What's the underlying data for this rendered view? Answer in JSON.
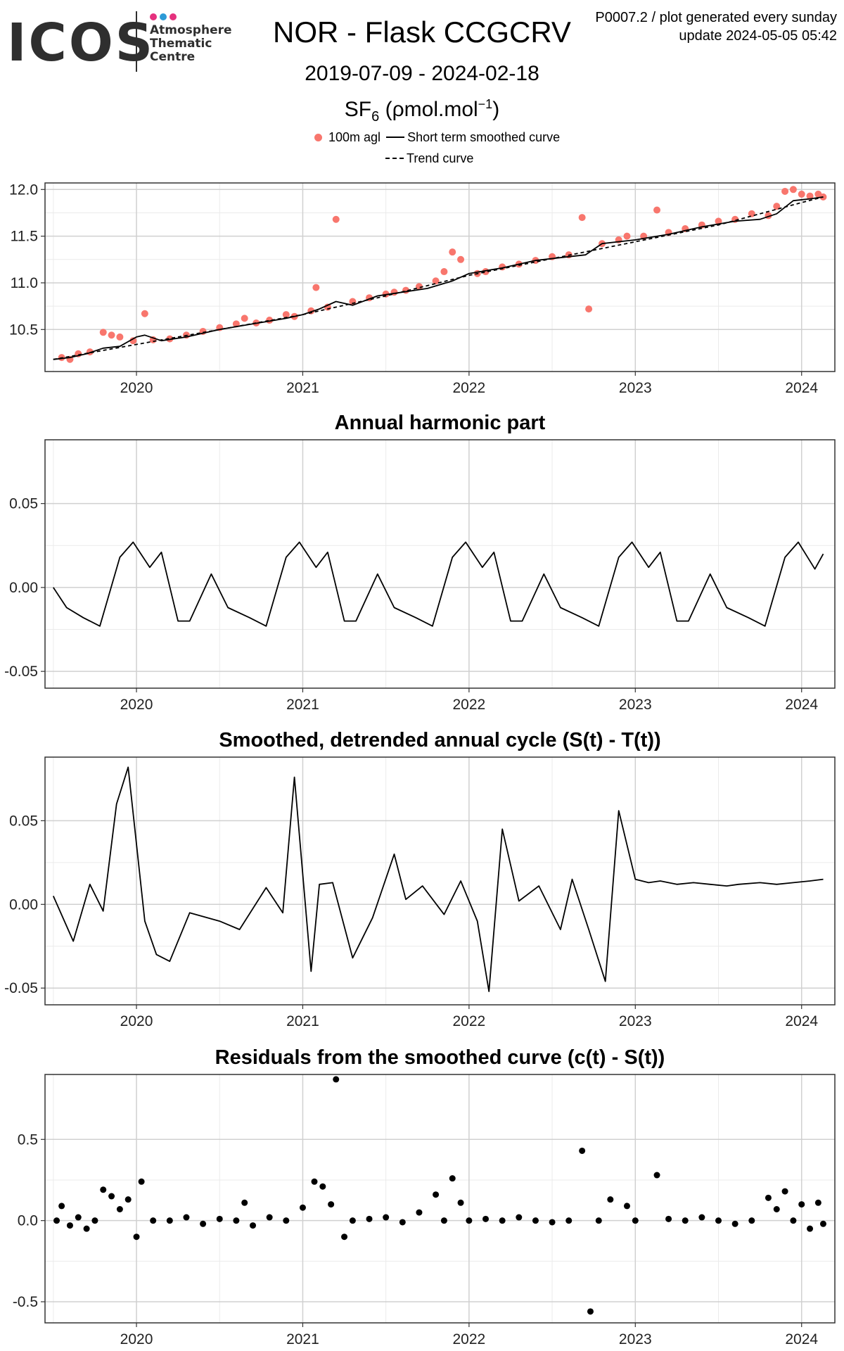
{
  "logo": {
    "text": "ICOS",
    "line1": "Atmosphere",
    "line2": "Thematic",
    "line3": "Centre",
    "dot_colors": [
      "#e5317e",
      "#2c9ad6",
      "#e5317e"
    ]
  },
  "header": {
    "title": "NOR - Flask CCGCRV",
    "date_range": "2019-07-09 - 2024-02-18",
    "unit_species": "SF",
    "unit_sub": "6",
    "unit_main": " (ρmol.mol",
    "unit_sup": "−1",
    "unit_close": ")",
    "right_line1": "P0007.2 / plot generated every sunday",
    "right_line2": "update  2024-05-05 05:42"
  },
  "legend": {
    "points_label": "100m agl",
    "smooth_label": "Short term smoothed curve",
    "trend_label": "Trend curve",
    "point_color": "#f8766d"
  },
  "chart_data": [
    {
      "type": "scatter",
      "title": "",
      "xlabel": "",
      "ylabel": "",
      "xlim": [
        2019.45,
        2024.2
      ],
      "ylim": [
        10.05,
        12.07
      ],
      "x_ticks": [
        2020,
        2021,
        2022,
        2023,
        2024
      ],
      "x_tick_labels": [
        "2020",
        "2021",
        "2022",
        "2023",
        "2024"
      ],
      "y_ticks": [
        10.5,
        11.0,
        11.5,
        12.0
      ],
      "y_tick_labels": [
        "10.5",
        "11.0",
        "11.5",
        "12.0"
      ],
      "grid": true,
      "point_color": "#f8766d",
      "series": [
        {
          "name": "100m agl",
          "kind": "points",
          "x": [
            2019.55,
            2019.6,
            2019.65,
            2019.72,
            2019.8,
            2019.85,
            2019.9,
            2019.98,
            2020.05,
            2020.1,
            2020.2,
            2020.3,
            2020.4,
            2020.5,
            2020.6,
            2020.65,
            2020.72,
            2020.8,
            2020.9,
            2020.95,
            2021.05,
            2021.08,
            2021.15,
            2021.2,
            2021.3,
            2021.4,
            2021.5,
            2021.55,
            2021.62,
            2021.7,
            2021.8,
            2021.85,
            2021.9,
            2021.95,
            2022.05,
            2022.1,
            2022.2,
            2022.3,
            2022.4,
            2022.5,
            2022.6,
            2022.68,
            2022.72,
            2022.8,
            2022.9,
            2022.95,
            2023.05,
            2023.13,
            2023.2,
            2023.3,
            2023.4,
            2023.5,
            2023.6,
            2023.7,
            2023.8,
            2023.85,
            2023.9,
            2023.95,
            2024.0,
            2024.05,
            2024.1,
            2024.13
          ],
          "y": [
            10.2,
            10.18,
            10.24,
            10.26,
            10.47,
            10.44,
            10.42,
            10.38,
            10.67,
            10.39,
            10.4,
            10.44,
            10.48,
            10.52,
            10.56,
            10.62,
            10.57,
            10.6,
            10.66,
            10.64,
            10.7,
            10.95,
            10.74,
            11.68,
            10.8,
            10.84,
            10.88,
            10.9,
            10.92,
            10.96,
            11.02,
            11.12,
            11.33,
            11.25,
            11.1,
            11.12,
            11.17,
            11.2,
            11.24,
            11.28,
            11.3,
            11.7,
            10.72,
            11.42,
            11.46,
            11.5,
            11.5,
            11.78,
            11.54,
            11.58,
            11.62,
            11.66,
            11.68,
            11.74,
            11.72,
            11.82,
            11.98,
            12.0,
            11.95,
            11.93,
            11.95,
            11.92
          ]
        },
        {
          "name": "Short term smoothed curve",
          "kind": "line",
          "x": [
            2019.5,
            2019.6,
            2019.7,
            2019.8,
            2019.9,
            2020.0,
            2020.05,
            2020.15,
            2020.3,
            2020.5,
            2020.7,
            2020.9,
            2021.0,
            2021.1,
            2021.2,
            2021.3,
            2021.45,
            2021.6,
            2021.75,
            2021.9,
            2022.0,
            2022.2,
            2022.4,
            2022.6,
            2022.7,
            2022.8,
            2023.0,
            2023.2,
            2023.4,
            2023.6,
            2023.75,
            2023.85,
            2023.95,
            2024.05,
            2024.13
          ],
          "y": [
            10.18,
            10.2,
            10.24,
            10.3,
            10.32,
            10.42,
            10.44,
            10.38,
            10.42,
            10.5,
            10.56,
            10.62,
            10.66,
            10.72,
            10.8,
            10.76,
            10.86,
            10.9,
            10.94,
            11.02,
            11.1,
            11.16,
            11.24,
            11.28,
            11.3,
            11.42,
            11.46,
            11.52,
            11.6,
            11.66,
            11.68,
            11.74,
            11.88,
            11.9,
            11.92
          ]
        },
        {
          "name": "Trend curve",
          "kind": "dashed",
          "x": [
            2019.5,
            2020.0,
            2020.5,
            2021.0,
            2021.5,
            2022.0,
            2022.5,
            2023.0,
            2023.5,
            2024.0,
            2024.13
          ],
          "y": [
            10.18,
            10.34,
            10.5,
            10.66,
            10.86,
            11.08,
            11.26,
            11.44,
            11.62,
            11.86,
            11.92
          ]
        }
      ]
    },
    {
      "type": "line",
      "title": "Annual harmonic part",
      "xlabel": "",
      "ylabel": "",
      "xlim": [
        2019.45,
        2024.2
      ],
      "ylim": [
        -0.06,
        0.088
      ],
      "x_ticks": [
        2020,
        2021,
        2022,
        2023,
        2024
      ],
      "x_tick_labels": [
        "2020",
        "2021",
        "2022",
        "2023",
        "2024"
      ],
      "y_ticks": [
        -0.05,
        0.0,
        0.05
      ],
      "y_tick_labels": [
        "-0.05",
        "0.00",
        "0.05"
      ],
      "grid": true,
      "series": [
        {
          "name": "",
          "kind": "line",
          "x": [
            2019.5,
            2019.58,
            2019.68,
            2019.78,
            2019.9,
            2019.98,
            2020.08,
            2020.15,
            2020.25,
            2020.32,
            2020.45,
            2020.55,
            2020.68,
            2020.78,
            2020.9,
            2020.98,
            2021.08,
            2021.15,
            2021.25,
            2021.32,
            2021.45,
            2021.55,
            2021.68,
            2021.78,
            2021.9,
            2021.98,
            2022.08,
            2022.15,
            2022.25,
            2022.32,
            2022.45,
            2022.55,
            2022.68,
            2022.78,
            2022.9,
            2022.98,
            2023.08,
            2023.15,
            2023.25,
            2023.32,
            2023.45,
            2023.55,
            2023.68,
            2023.78,
            2023.9,
            2023.98,
            2024.08,
            2024.13
          ],
          "y": [
            0.0,
            -0.012,
            -0.018,
            -0.023,
            0.018,
            0.027,
            0.012,
            0.021,
            -0.02,
            -0.02,
            0.008,
            -0.012,
            -0.018,
            -0.023,
            0.018,
            0.027,
            0.012,
            0.021,
            -0.02,
            -0.02,
            0.008,
            -0.012,
            -0.018,
            -0.023,
            0.018,
            0.027,
            0.012,
            0.021,
            -0.02,
            -0.02,
            0.008,
            -0.012,
            -0.018,
            -0.023,
            0.018,
            0.027,
            0.012,
            0.021,
            -0.02,
            -0.02,
            0.008,
            -0.012,
            -0.018,
            -0.023,
            0.018,
            0.027,
            0.011,
            0.02
          ]
        }
      ]
    },
    {
      "type": "line",
      "title": "Smoothed, detrended annual cycle (S(t) - T(t))",
      "xlabel": "",
      "ylabel": "",
      "xlim": [
        2019.45,
        2024.2
      ],
      "ylim": [
        -0.06,
        0.088
      ],
      "x_ticks": [
        2020,
        2021,
        2022,
        2023,
        2024
      ],
      "x_tick_labels": [
        "2020",
        "2021",
        "2022",
        "2023",
        "2024"
      ],
      "y_ticks": [
        -0.05,
        0.0,
        0.05
      ],
      "y_tick_labels": [
        "-0.05",
        "0.00",
        "0.05"
      ],
      "grid": true,
      "series": [
        {
          "name": "",
          "kind": "line",
          "x": [
            2019.5,
            2019.62,
            2019.72,
            2019.8,
            2019.88,
            2019.95,
            2020.05,
            2020.12,
            2020.2,
            2020.32,
            2020.5,
            2020.62,
            2020.78,
            2020.88,
            2020.95,
            2021.05,
            2021.1,
            2021.18,
            2021.3,
            2021.42,
            2021.55,
            2021.62,
            2021.72,
            2021.85,
            2021.95,
            2022.05,
            2022.12,
            2022.2,
            2022.3,
            2022.42,
            2022.55,
            2022.62,
            2022.72,
            2022.82,
            2022.9,
            2023.0,
            2023.08,
            2023.15,
            2023.25,
            2023.35,
            2023.45,
            2023.55,
            2023.62,
            2023.75,
            2023.85,
            2023.95,
            2024.05,
            2024.13
          ],
          "y": [
            0.005,
            -0.022,
            0.012,
            -0.004,
            0.06,
            0.082,
            -0.01,
            -0.03,
            -0.034,
            -0.005,
            -0.01,
            -0.015,
            0.01,
            -0.005,
            0.076,
            -0.04,
            0.012,
            0.013,
            -0.032,
            -0.008,
            0.03,
            0.003,
            0.011,
            -0.006,
            0.014,
            -0.01,
            -0.052,
            0.045,
            0.002,
            0.011,
            -0.015,
            0.015,
            -0.015,
            -0.046,
            0.056,
            0.015,
            0.013,
            0.014,
            0.012,
            0.013,
            0.012,
            0.011,
            0.012,
            0.013,
            0.012,
            0.013,
            0.014,
            0.015
          ]
        }
      ]
    },
    {
      "type": "scatter",
      "title": "Residuals from the smoothed curve (c(t) - S(t))",
      "xlabel": "",
      "ylabel": "",
      "xlim": [
        2019.45,
        2024.2
      ],
      "ylim": [
        -0.63,
        0.9
      ],
      "x_ticks": [
        2020,
        2021,
        2022,
        2023,
        2024
      ],
      "x_tick_labels": [
        "2020",
        "2021",
        "2022",
        "2023",
        "2024"
      ],
      "y_ticks": [
        -0.5,
        0.0,
        0.5
      ],
      "y_tick_labels": [
        "-0.5",
        "0.0",
        "0.5"
      ],
      "grid": true,
      "point_color": "#000000",
      "series": [
        {
          "name": "",
          "kind": "points",
          "x": [
            2019.52,
            2019.55,
            2019.6,
            2019.65,
            2019.7,
            2019.75,
            2019.8,
            2019.85,
            2019.9,
            2019.95,
            2020.0,
            2020.03,
            2020.1,
            2020.2,
            2020.3,
            2020.4,
            2020.5,
            2020.6,
            2020.65,
            2020.7,
            2020.8,
            2020.9,
            2021.0,
            2021.07,
            2021.12,
            2021.17,
            2021.2,
            2021.25,
            2021.3,
            2021.4,
            2021.5,
            2021.6,
            2021.7,
            2021.8,
            2021.85,
            2021.9,
            2021.95,
            2022.0,
            2022.1,
            2022.2,
            2022.3,
            2022.4,
            2022.5,
            2022.6,
            2022.68,
            2022.73,
            2022.78,
            2022.85,
            2022.95,
            2023.0,
            2023.13,
            2023.2,
            2023.3,
            2023.4,
            2023.5,
            2023.6,
            2023.7,
            2023.8,
            2023.85,
            2023.9,
            2023.95,
            2024.0,
            2024.05,
            2024.1,
            2024.13
          ],
          "y": [
            0.0,
            0.09,
            -0.03,
            0.02,
            -0.05,
            0.0,
            0.19,
            0.15,
            0.07,
            0.13,
            -0.1,
            0.24,
            0.0,
            0.0,
            0.02,
            -0.02,
            0.01,
            0.0,
            0.11,
            -0.03,
            0.02,
            0.0,
            0.08,
            0.24,
            0.21,
            0.1,
            0.87,
            -0.1,
            0.0,
            0.01,
            0.02,
            -0.01,
            0.05,
            0.16,
            0.0,
            0.26,
            0.11,
            0.0,
            0.01,
            0.0,
            0.02,
            0.0,
            -0.01,
            0.0,
            0.43,
            -0.56,
            0.0,
            0.13,
            0.09,
            0.0,
            0.28,
            0.01,
            0.0,
            0.02,
            0.0,
            -0.02,
            0.0,
            0.14,
            0.07,
            0.18,
            0.0,
            0.1,
            -0.05,
            0.11,
            -0.02
          ]
        }
      ]
    }
  ]
}
